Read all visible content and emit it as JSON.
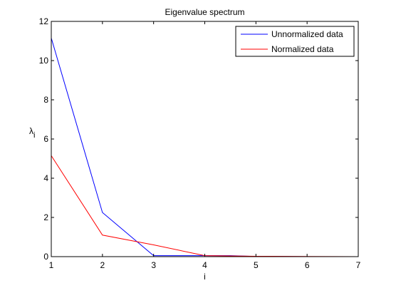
{
  "chart_data": {
    "type": "line",
    "title": "Eigenvalue spectrum",
    "xlabel": "i",
    "ylabel": "λ",
    "ylabel_subscript": "i",
    "xlim": [
      1,
      7
    ],
    "ylim": [
      0,
      12
    ],
    "xticks": [
      "1",
      "2",
      "3",
      "4",
      "5",
      "6",
      "7"
    ],
    "yticks": [
      "0",
      "2",
      "4",
      "6",
      "8",
      "10",
      "12"
    ],
    "grid": false,
    "legend_position": "top-right",
    "series": [
      {
        "name": "Unnormalized data",
        "color": "#0000ff",
        "x": [
          1,
          2,
          3,
          4,
          4.5,
          5,
          6,
          7
        ],
        "y": [
          11.15,
          2.25,
          0.05,
          0.05,
          0.05,
          0.01,
          0.0,
          0.0
        ]
      },
      {
        "name": "Normalized data",
        "color": "#ff0000",
        "x": [
          1,
          2,
          3,
          4,
          5,
          6,
          7
        ],
        "y": [
          5.15,
          1.1,
          0.6,
          0.05,
          0.02,
          0.01,
          0.0
        ]
      }
    ]
  }
}
